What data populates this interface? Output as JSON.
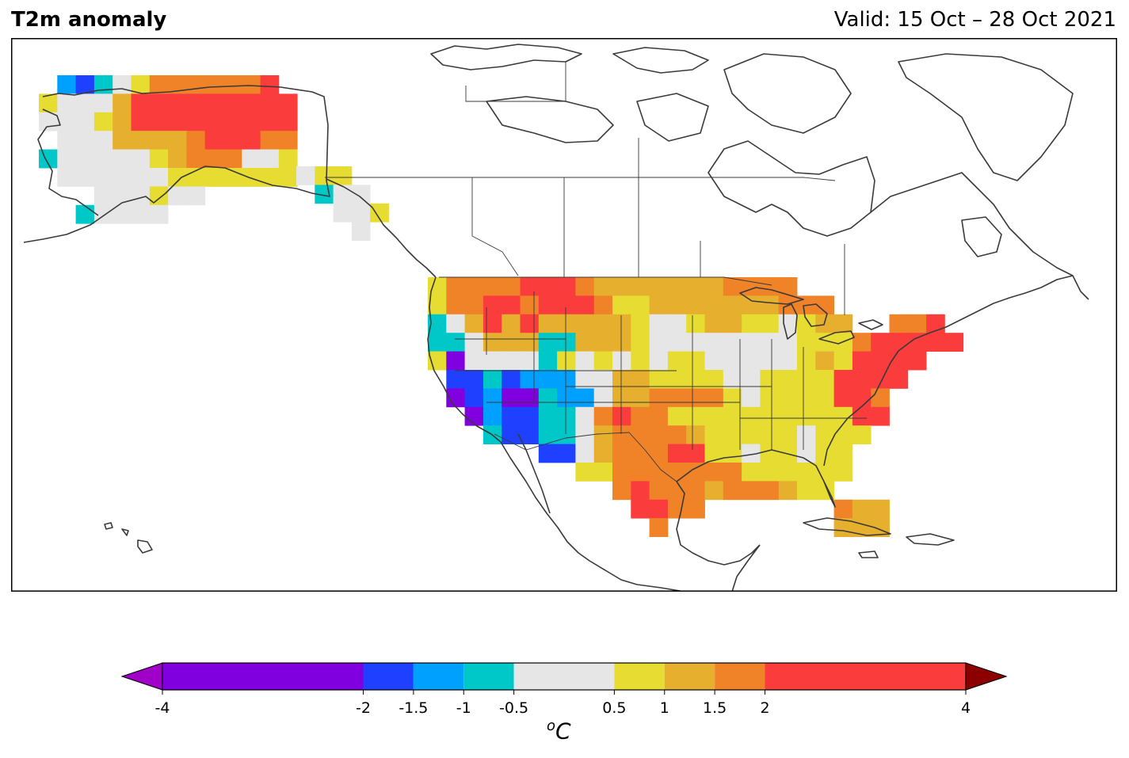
{
  "header": {
    "title": "T2m anomaly",
    "valid": "Valid: 15 Oct – 28 Oct 2021"
  },
  "colorbar": {
    "unit_base": "C",
    "unit_super": "o",
    "ticks": [
      "-4",
      "-2",
      "-1.5",
      "-1",
      "-0.5",
      "0.5",
      "1",
      "1.5",
      "2",
      "4"
    ],
    "bins": [
      {
        "from": -4,
        "to": -2,
        "color": "#8000e0"
      },
      {
        "from": -2,
        "to": -1.5,
        "color": "#2040ff"
      },
      {
        "from": -1.5,
        "to": -1,
        "color": "#00a0ff"
      },
      {
        "from": -1,
        "to": -0.5,
        "color": "#00c8c8"
      },
      {
        "from": -0.5,
        "to": 0.5,
        "color": "#e6e6e6"
      },
      {
        "from": 0.5,
        "to": 1,
        "color": "#e6dc32"
      },
      {
        "from": 1,
        "to": 1.5,
        "color": "#e6af2d"
      },
      {
        "from": 1.5,
        "to": 2,
        "color": "#f08228"
      },
      {
        "from": 2,
        "to": 4,
        "color": "#fa3c3c"
      }
    ],
    "extend_low_color": "#a000c8",
    "extend_high_color": "#8c0000"
  },
  "anomaly_grid": {
    "colors": {
      "P": "#8000e0",
      "B": "#2040ff",
      "L": "#00a0ff",
      "C": "#00c8c8",
      "G": "#e6e6e6",
      "Y": "#e6dc32",
      "O": "#e6af2d",
      "N": "#f08228",
      "R": "#fa3c3c"
    },
    "regions": [
      {
        "name": "alaska",
        "rows": [
          ".LBCGYNNNNNNR...",
          "YGGGORRRRRRRRR..",
          "GGGYORRRRRRRRR..",
          ".GGGOOOONRRRNN..",
          "CGGGGGYONNNGGY..",
          ".GGGGGGYYYYYYY..",
          "...GGGYGG.......",
          "..CGGGG........."
        ]
      },
      {
        "name": "panhandle",
        "rows": [
          "GYY..",
          ".CGG.",
          "..GGY",
          "...G."
        ]
      },
      {
        "name": "conus",
        "rows": [
          "YNNNNRRRNOOOOOOONNNN.........",
          "YNNRRNRRRNYYOOOOOOONNN.......",
          "CGOROROOOOOYGGYOOYYGYOO..NNR.",
          "CCGOOOCCOOOYGGGGGGGGYYYNRRRRR",
          "YPGGGGCYGYGYGYYGGGGGYOYRRRR..",
          ".BBCBLLLGGOOYYYYGGYYYYRRRR...",
          ".PBLPPCLLGOONNNNYGYYYYRRN....",
          "..PLBBCCGNRNNYYYYYYYYYYRR....",
          "...CBBCCGONNNNOYYYYYGYYY.....",
          "......BBGONNNRRYYGYYGYY......",
          "........YYNNNNNNNYYYYYY......",
          "..........NRNNNONNNOYY.......",
          "...........RRNN.......NOO....",
          "............N.........OOO...."
        ]
      }
    ]
  }
}
